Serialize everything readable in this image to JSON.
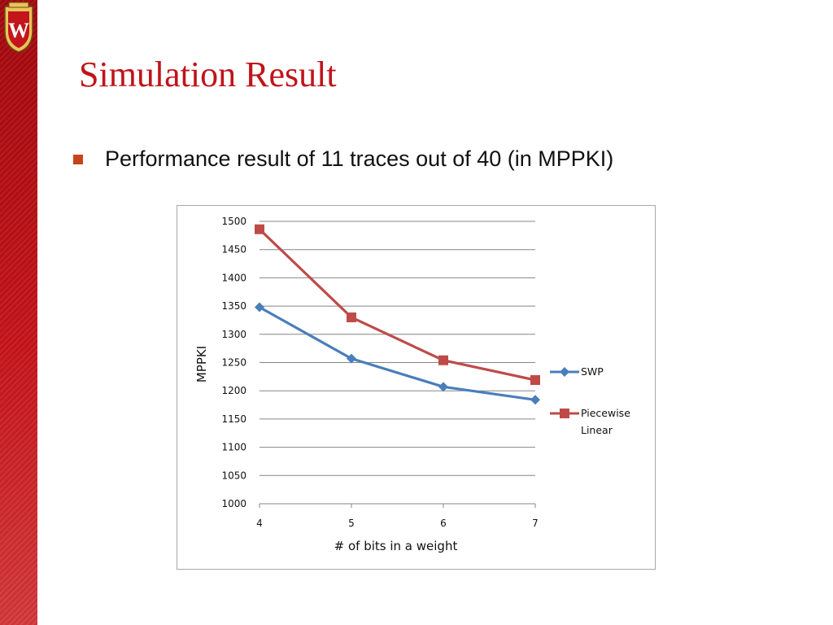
{
  "slide": {
    "title": "Simulation Result",
    "bullet": "Performance result of 11 traces out of 40 (in MPPKI)"
  },
  "colors": {
    "title": "#c0141b",
    "bullet_marker": "#c8431b",
    "sidebar": "#b5121b"
  },
  "icons": {
    "logo": "uw-crest-icon"
  },
  "chart_data": {
    "type": "line",
    "title": "",
    "xlabel": "# of bits in a weight",
    "ylabel": "MPPKI",
    "categories": [
      "4",
      "5",
      "6",
      "7"
    ],
    "ylim": [
      1000,
      1500
    ],
    "yticks": [
      "1000",
      "1050",
      "1100",
      "1150",
      "1200",
      "1250",
      "1300",
      "1350",
      "1400",
      "1450",
      "1500"
    ],
    "grid": "horizontal",
    "legend": "right",
    "series": [
      {
        "name": "SWP",
        "values": [
          1348,
          1257,
          1207,
          1184
        ],
        "color": "#4a7ebb",
        "marker": "diamond"
      },
      {
        "name": "Piecewise Linear",
        "legend_lines": [
          "Piecewise",
          "Linear"
        ],
        "values": [
          1486,
          1330,
          1254,
          1219
        ],
        "color": "#be4b48",
        "marker": "square"
      }
    ]
  }
}
